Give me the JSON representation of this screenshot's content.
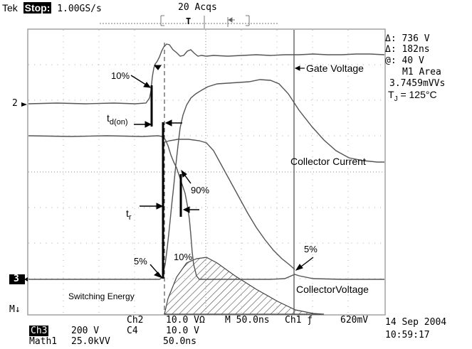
{
  "header": {
    "brand": "Tek",
    "state": "Stop:",
    "sample_rate": "1.00GS/s",
    "acquisitions": "20 Acqs",
    "trigger_marker": "T"
  },
  "measurements": {
    "delta_v": "Δ: 736 V",
    "delta_t": "Δ: 182ns",
    "at_v": "@: 40 V",
    "area_label": "M1 Area",
    "area_value": "3.7459mVVs",
    "tj_prefix": "T",
    "tj_sub": "J",
    "tj_suffix": " = 125°C"
  },
  "annotations": {
    "gate_voltage": "Gate Voltage",
    "collector_current": "Collector Current",
    "collector_voltage": "CollectorVoltage",
    "switching_energy": "Switching Energy",
    "pct_10_left": "10%",
    "pct_10_peak": "10%",
    "pct_90": "90%",
    "pct_5_left": "5%",
    "pct_5_right": "5%",
    "td_on_main": "t",
    "td_on_sub": "d(on)",
    "tr_main": "t",
    "tr_sub": "r"
  },
  "channel_markers": {
    "ch2": "2",
    "ch3": "3",
    "math": "M"
  },
  "footer": {
    "ch2_label": "Ch2",
    "ch2_scale": "10.0 VΩ",
    "ch3_label": "Ch3",
    "ch3_scale": "200 V",
    "ch4_label": "C4",
    "ch4_scale": "10.0 V",
    "math_label": "Math1",
    "math_scale": "25.0kVV",
    "math_time": "50.0ns",
    "timebase": "M 50.0ns",
    "trigger_source": "Ch1",
    "trigger_slope": "ƒ",
    "trigger_level": "620mV",
    "date": "14 Sep 2004",
    "time": "10:59:17"
  },
  "colors": {
    "trace": "#707070",
    "grid": "#9a9a9a",
    "ink": "#000000"
  }
}
